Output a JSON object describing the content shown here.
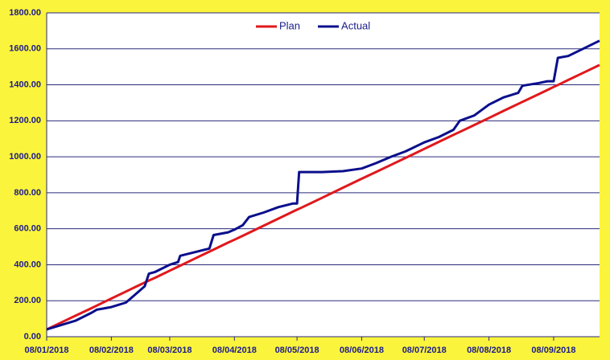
{
  "chart_data": {
    "type": "line",
    "x": [
      "08/01/2018",
      "15/01/2018",
      "22/01/2018",
      "29/01/2018",
      "01/02/2018",
      "08/02/2018",
      "15/02/2018",
      "20/02/2018",
      "24/02/2018",
      "26/02/2018",
      "01/03/2018",
      "08/03/2018",
      "12/03/2018",
      "13/03/2018",
      "20/03/2018",
      "27/03/2018",
      "29/03/2018",
      "05/04/2018",
      "08/04/2018",
      "12/04/2018",
      "15/04/2018",
      "22/04/2018",
      "29/04/2018",
      "06/05/2018",
      "08/05/2018",
      "09/05/2018",
      "20/05/2018",
      "30/05/2018",
      "08/06/2018",
      "15/06/2018",
      "22/06/2018",
      "29/06/2018",
      "08/07/2018",
      "15/07/2018",
      "22/07/2018",
      "25/07/2018",
      "01/08/2018",
      "08/08/2018",
      "15/08/2018",
      "22/08/2018",
      "24/08/2018",
      "01/09/2018",
      "05/09/2018",
      "08/09/2018",
      "10/09/2018",
      "15/09/2018",
      "22/09/2018",
      "30/09/2018"
    ],
    "series": [
      {
        "name": "Plan",
        "color": "#e0181c",
        "values": [
          40,
          79,
          118,
          156,
          173,
          212,
          251,
          279,
          301,
          312,
          328,
          367,
          389,
          395,
          434,
          473,
          484,
          523,
          539,
          561,
          578,
          617,
          656,
          695,
          706,
          711,
          772,
          828,
          878,
          916,
          955,
          994,
          1044,
          1083,
          1122,
          1138,
          1177,
          1216,
          1255,
          1294,
          1305,
          1349,
          1371,
          1388,
          1399,
          1427,
          1466,
          1510
        ]
      },
      {
        "name": "Actual",
        "color": "#0a0f8c",
        "values": [
          40,
          65,
          90,
          130,
          150,
          165,
          190,
          240,
          280,
          350,
          360,
          400,
          415,
          450,
          470,
          490,
          565,
          580,
          595,
          620,
          665,
          690,
          720,
          740,
          740,
          915,
          915,
          920,
          935,
          965,
          1000,
          1030,
          1080,
          1110,
          1150,
          1200,
          1230,
          1290,
          1330,
          1355,
          1395,
          1410,
          1420,
          1420,
          1550,
          1560,
          1600,
          1645
        ]
      }
    ],
    "xlim": [
      "08/01/2018",
      "30/09/2018"
    ],
    "xticks": [
      "08/01/2018",
      "08/02/2018",
      "08/03/2018",
      "08/04/2018",
      "08/05/2018",
      "08/06/2018",
      "08/07/2018",
      "08/08/2018",
      "08/09/2018"
    ],
    "ylim": [
      0,
      1800
    ],
    "yticks": [
      {
        "value": 0,
        "label": "0.00"
      },
      {
        "value": 200,
        "label": "200.00"
      },
      {
        "value": 400,
        "label": "400.00"
      },
      {
        "value": 600,
        "label": "600.00"
      },
      {
        "value": 800,
        "label": "800.00"
      },
      {
        "value": 1000,
        "label": "1000.00"
      },
      {
        "value": 1200,
        "label": "1200.00"
      },
      {
        "value": 1400,
        "label": "1400.00"
      },
      {
        "value": 1600,
        "label": "1600.00"
      },
      {
        "value": 1800,
        "label": "1800.00"
      }
    ],
    "grid": true,
    "legend": "top"
  }
}
